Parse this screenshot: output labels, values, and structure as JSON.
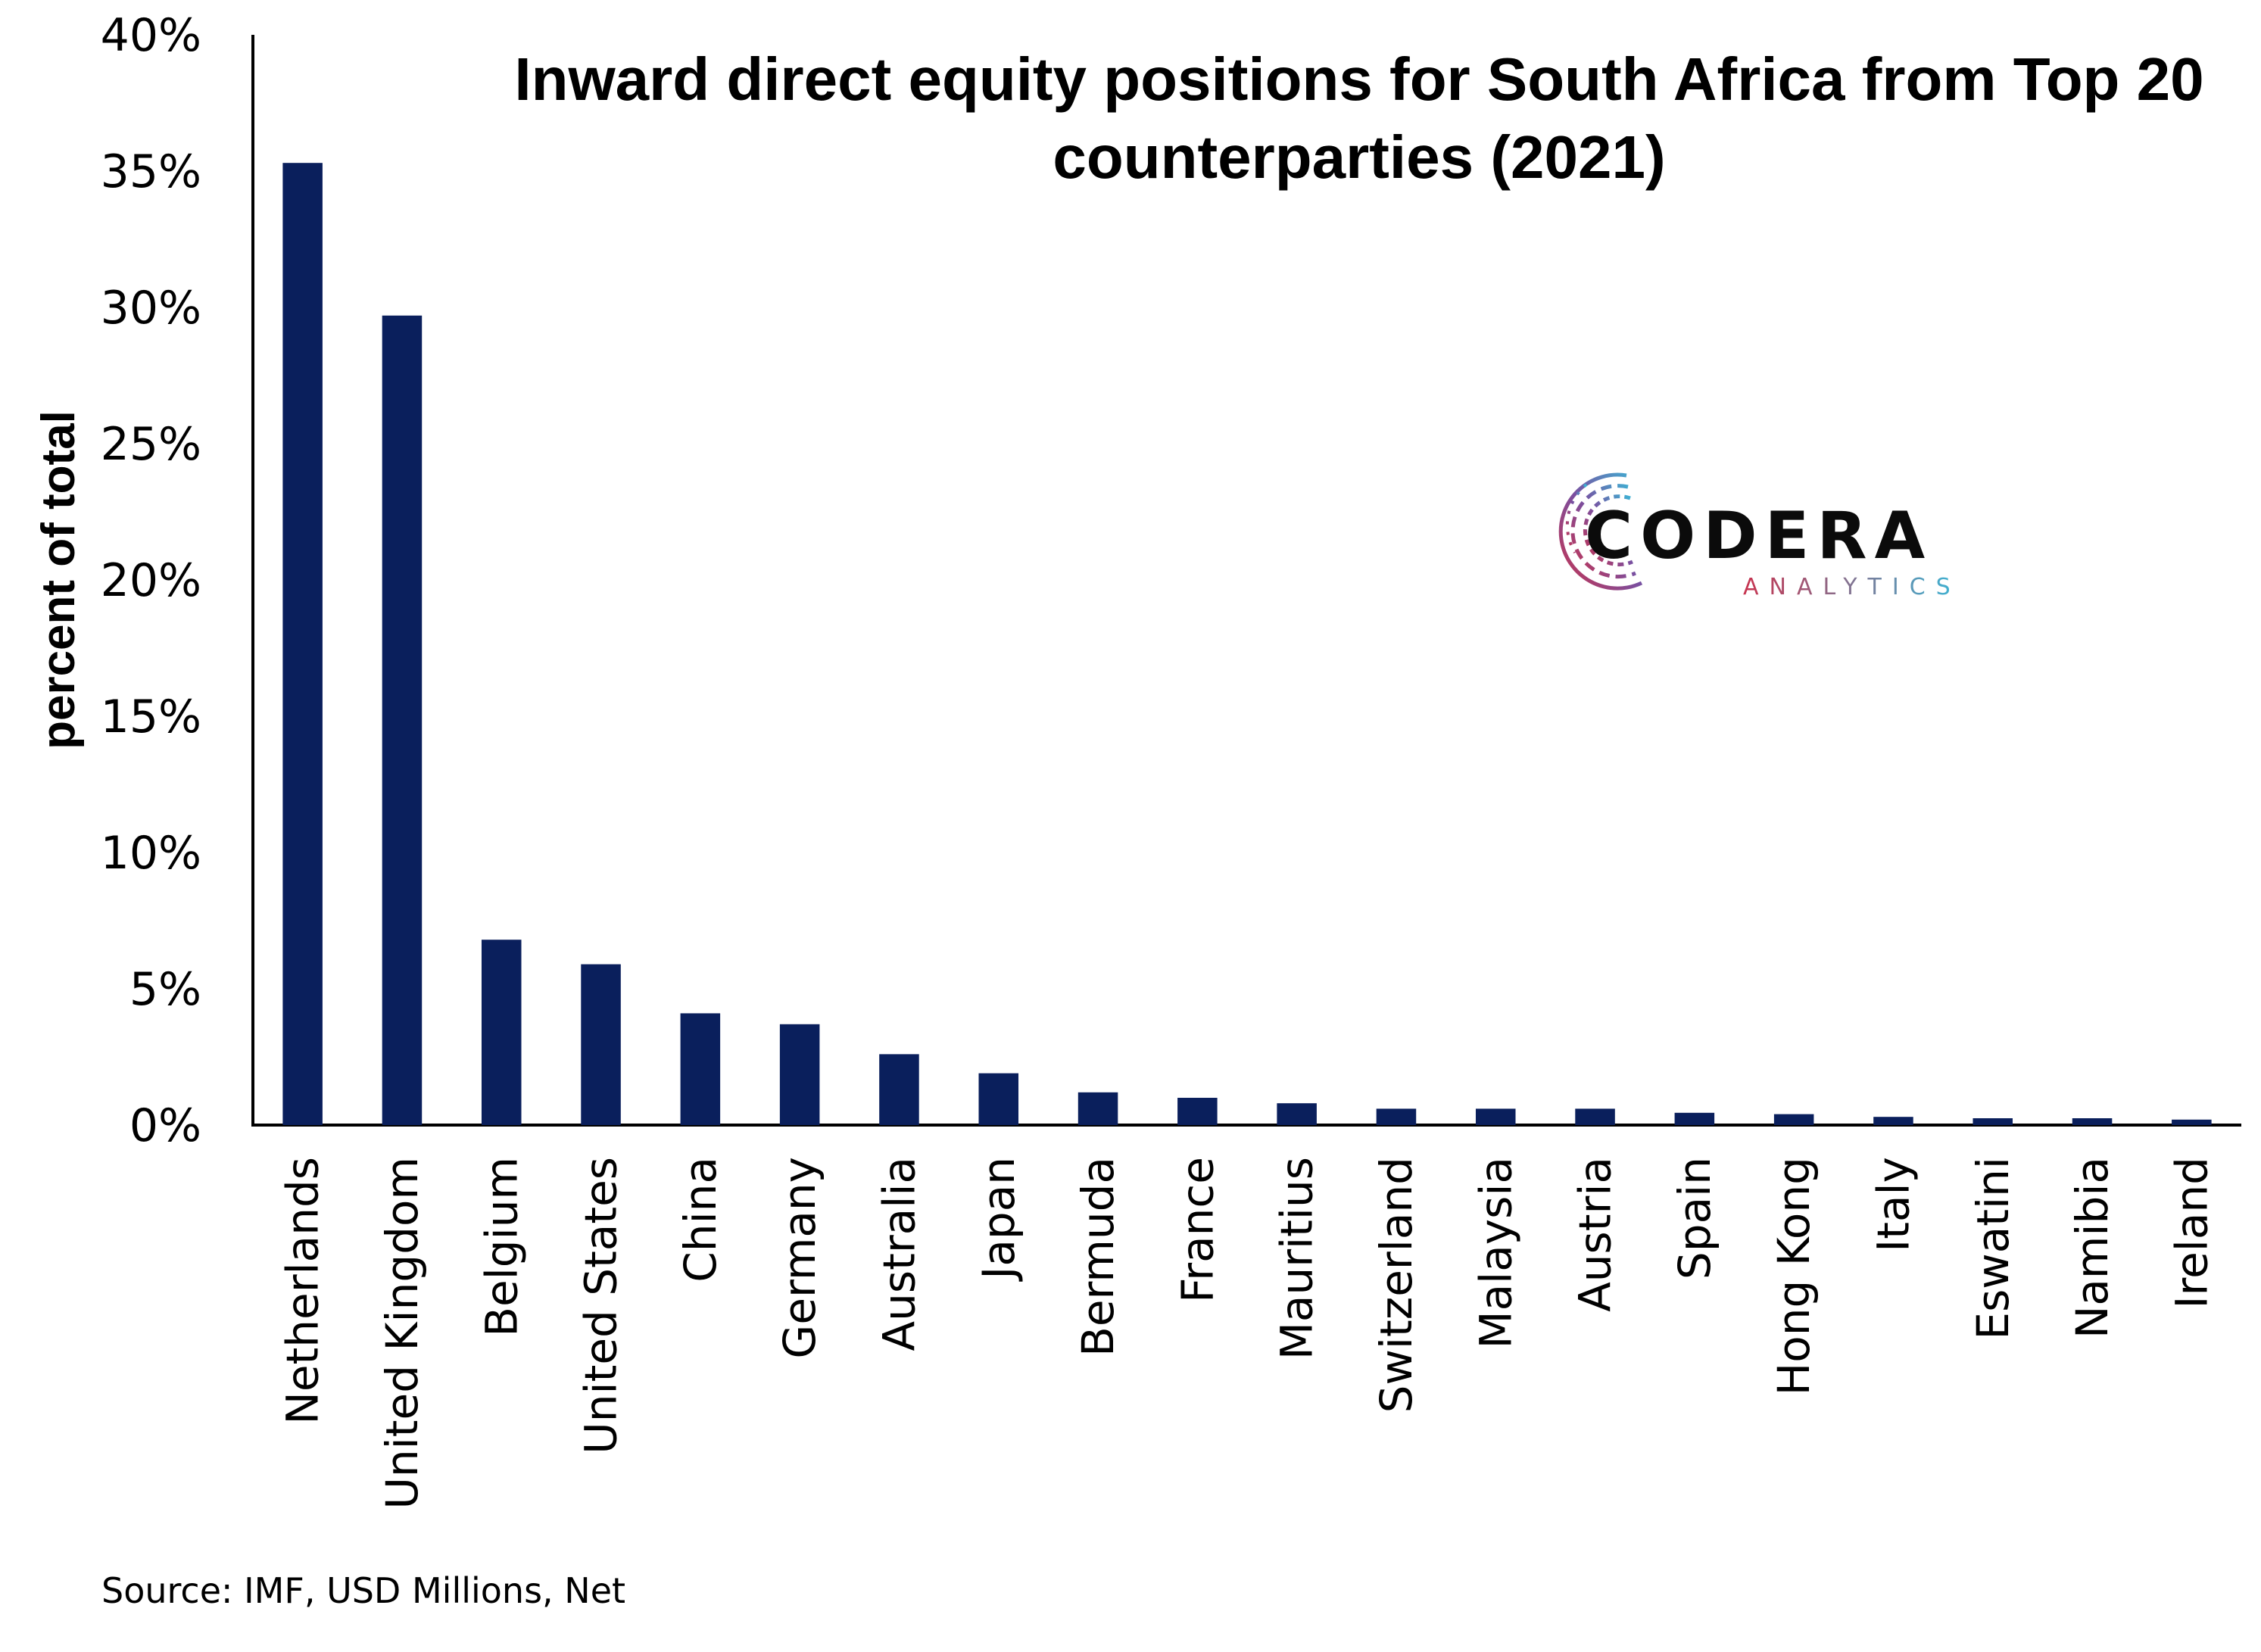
{
  "chart_data": {
    "type": "bar",
    "title": "Inward direct equity positions for South Africa from Top 20 counterparties (2021)",
    "title_lines": [
      "Inward direct equity positions for South Africa from Top 20",
      "counterparties (2021)"
    ],
    "xlabel": "",
    "ylabel": "percent of total",
    "ylim": [
      0,
      40
    ],
    "yticks": [
      "0%",
      "5%",
      "10%",
      "15%",
      "20%",
      "25%",
      "30%",
      "35%",
      "40%"
    ],
    "grid": false,
    "legend": "none",
    "categories": [
      "Netherlands",
      "United Kingdom",
      "Belgium",
      "United States",
      "China",
      "Germany",
      "Australia",
      "Japan",
      "Bermuda",
      "France",
      "Mauritius",
      "Switzerland",
      "Malaysia",
      "Austria",
      "Spain",
      "Hong Kong",
      "Italy",
      "Eswatini",
      "Namibia",
      "Ireland"
    ],
    "values": [
      35.3,
      29.7,
      6.8,
      5.9,
      4.1,
      3.7,
      2.6,
      1.9,
      1.2,
      1.0,
      0.8,
      0.6,
      0.6,
      0.6,
      0.45,
      0.4,
      0.3,
      0.25,
      0.25,
      0.2
    ],
    "bar_color": "#0a1f5c",
    "source": "Source: IMF, USD Millions, Net"
  },
  "logo": {
    "main": "CODERA",
    "sub": "ANALYTICS",
    "main_color": "#0b0b0b",
    "sub_gradient": [
      "#c8334f",
      "#3bb6d6"
    ]
  }
}
